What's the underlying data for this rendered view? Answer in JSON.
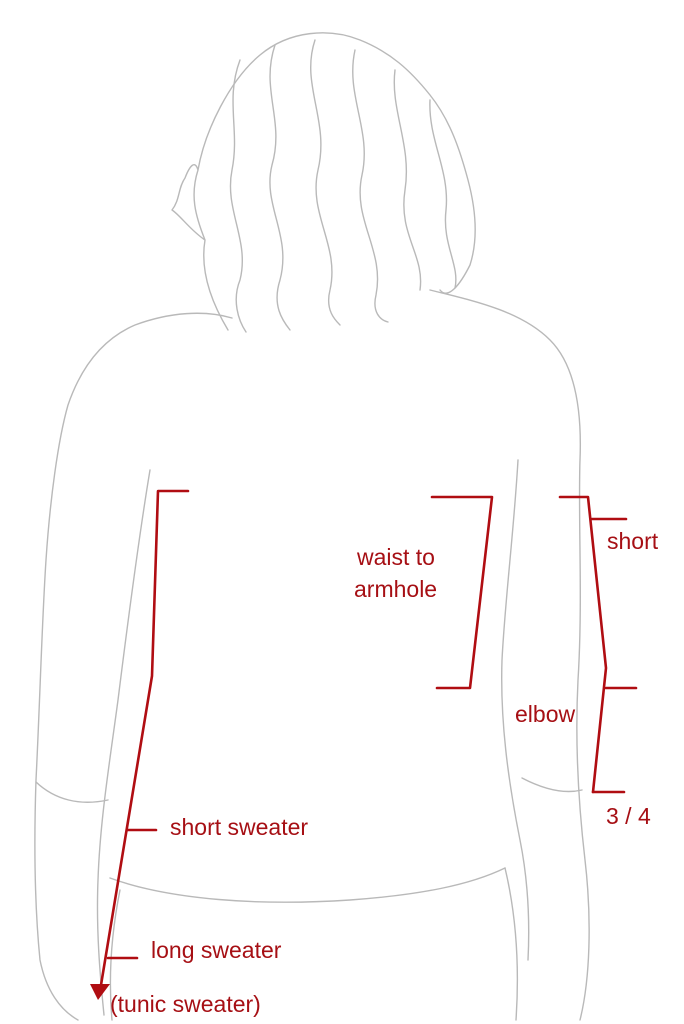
{
  "colors": {
    "outline": "#b9b9b9",
    "marker": "#b00d12",
    "label": "#a60f14",
    "background": "#ffffff"
  },
  "labels": {
    "waist_to_armhole_line1": "waist to",
    "waist_to_armhole_line2": "armhole",
    "short_sleeve": "short",
    "elbow": "elbow",
    "three_quarter": "3 / 4",
    "short_sweater": "short sweater",
    "long_sweater": "long sweater",
    "tunic_sweater": "(tunic sweater)"
  }
}
